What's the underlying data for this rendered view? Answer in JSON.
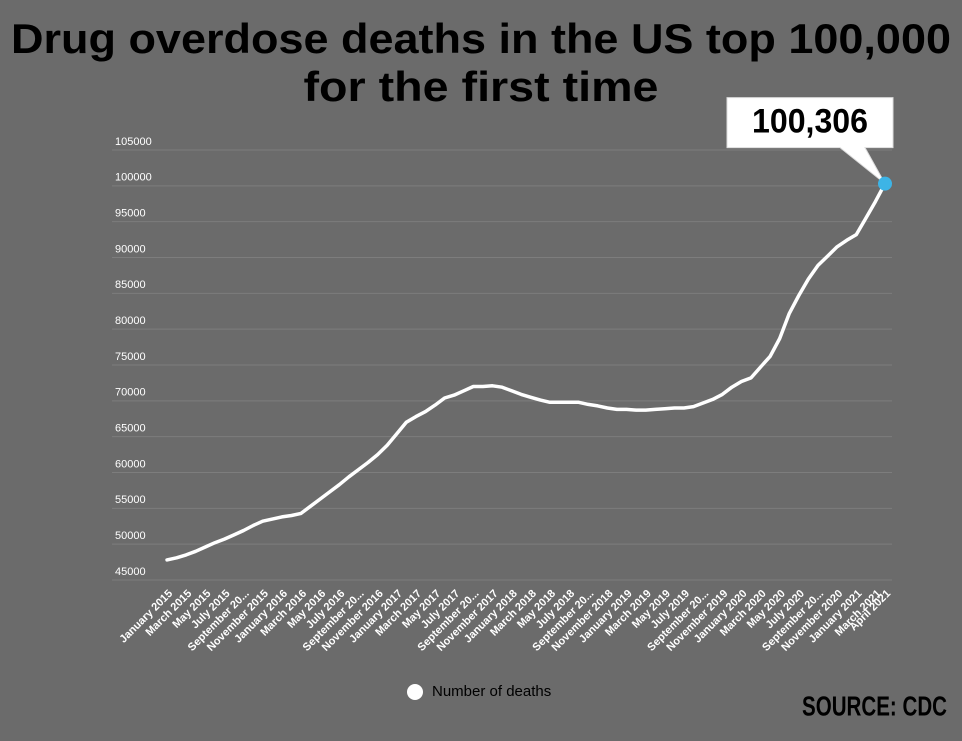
{
  "chart_data": {
    "type": "line",
    "title": [
      "Drug overdose deaths in the US top 100,000",
      "for the first time"
    ],
    "categories": [
      "January 2015",
      null,
      "March 2015",
      null,
      "May 2015",
      null,
      "July 2015",
      null,
      "September 20...",
      null,
      "November 2015",
      null,
      "January 2016",
      null,
      "March 2016",
      null,
      "May 2016",
      null,
      "July 2016",
      null,
      "September 20...",
      null,
      "November 2016",
      null,
      "January 2017",
      null,
      "March 2017",
      null,
      "May 2017",
      null,
      "July 2017",
      null,
      "September 20...",
      null,
      "November 2017",
      null,
      "January 2018",
      null,
      "March 2018",
      null,
      "May 2018",
      null,
      "July 2018",
      null,
      "September 20...",
      null,
      "November 2018",
      null,
      "January 2019",
      null,
      "March 2019",
      null,
      "May 2019",
      null,
      "July 2019",
      null,
      "September 20...",
      null,
      "November 2019",
      null,
      "January 2020",
      null,
      "March 2020",
      null,
      "May 2020",
      null,
      "July 2020",
      null,
      "September 20...",
      null,
      "November 2020",
      null,
      "January 2021",
      null,
      "March 2021",
      "April 2021"
    ],
    "series": [
      {
        "name": "Number of deaths",
        "color": "#ffffff",
        "values": [
          47800,
          48100,
          48500,
          49000,
          49600,
          50200,
          50700,
          51300,
          51900,
          52600,
          53200,
          53500,
          53800,
          54000,
          54300,
          55300,
          56300,
          57300,
          58300,
          59400,
          60400,
          61400,
          62500,
          63800,
          65400,
          67000,
          67800,
          68500,
          69400,
          70400,
          70800,
          71400,
          72000,
          72000,
          72100,
          71900,
          71400,
          70900,
          70500,
          70100,
          69800,
          69800,
          69800,
          69800,
          69500,
          69300,
          69000,
          68800,
          68800,
          68700,
          68700,
          68800,
          68900,
          69000,
          69000,
          69200,
          69700,
          70200,
          70900,
          71900,
          72700,
          73200,
          74700,
          76200,
          78700,
          82200,
          84700,
          87000,
          88900,
          90200,
          91500,
          92400,
          93200,
          95500,
          97800,
          100306
        ],
        "value_labels": [
          null,
          null,
          null,
          null,
          null,
          null,
          null,
          null,
          null,
          null,
          null,
          null,
          null,
          null,
          null,
          null,
          null,
          null,
          null,
          null,
          null,
          null,
          null,
          null,
          null,
          null,
          null,
          null,
          null,
          null,
          null,
          null,
          null,
          null,
          null,
          null,
          null,
          null,
          null,
          null,
          null,
          null,
          null,
          null,
          null,
          null,
          null,
          null,
          null,
          null,
          null,
          null,
          null,
          null,
          null,
          null,
          null,
          null,
          null,
          null,
          null,
          null,
          null,
          null,
          null,
          null,
          null,
          null,
          null,
          null,
          null,
          null,
          null,
          null,
          null,
          "100,306"
        ]
      }
    ],
    "highlight_color": "#3db4e6",
    "ylim": [
      45000,
      105000
    ],
    "yticks": [
      45000,
      50000,
      55000,
      60000,
      65000,
      70000,
      75000,
      80000,
      85000,
      90000,
      95000,
      100000,
      105000
    ],
    "grid": true,
    "legend": "bottom",
    "source": "SOURCE: CDC"
  }
}
